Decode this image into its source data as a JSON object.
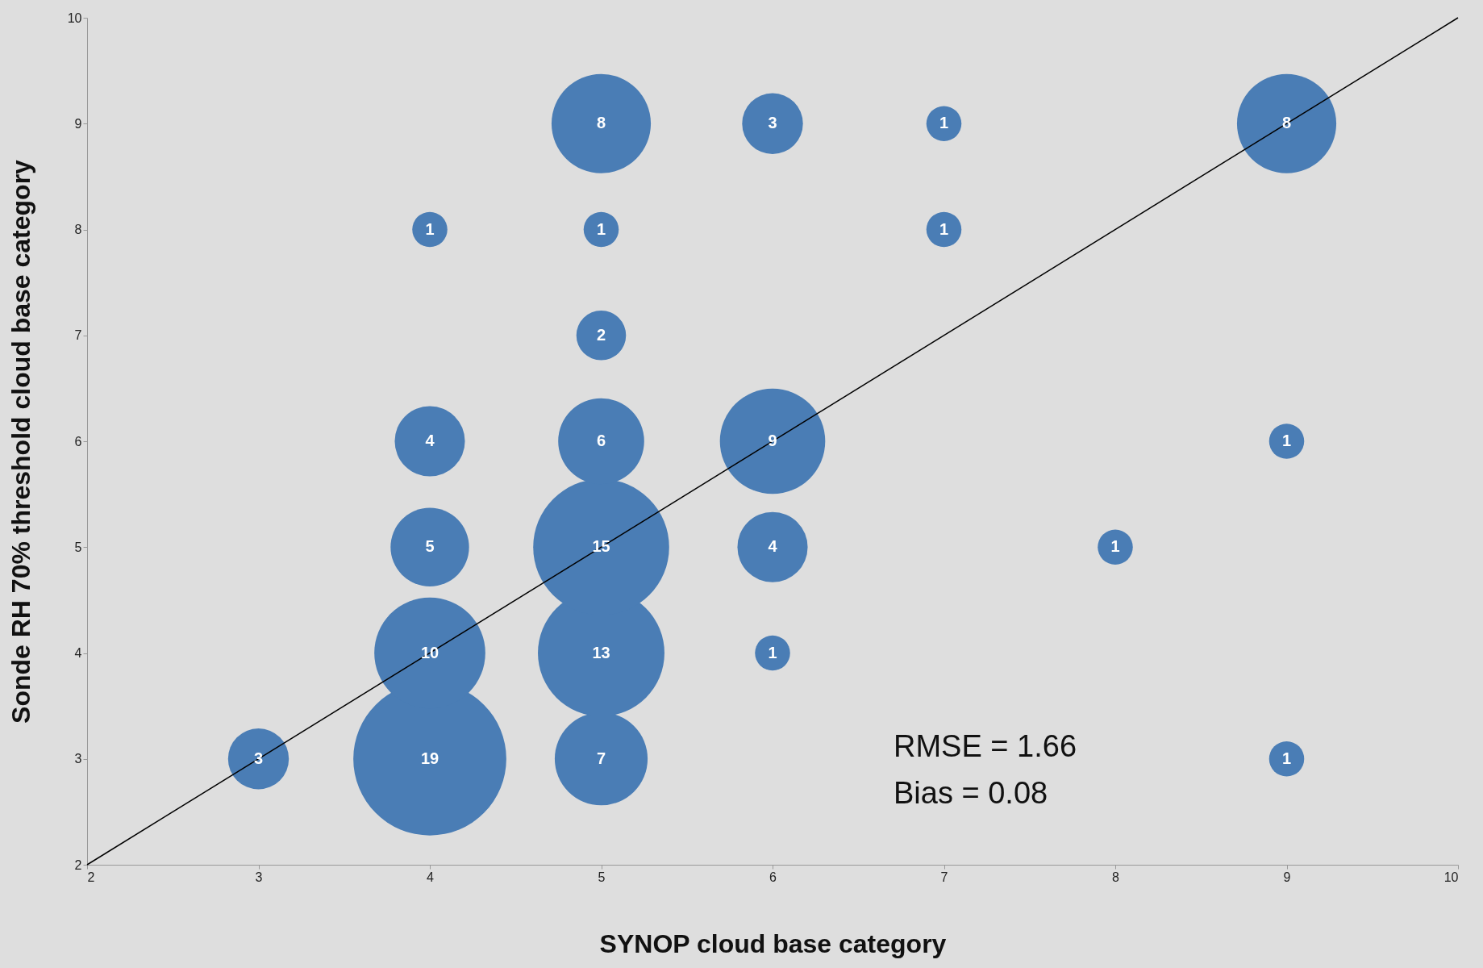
{
  "chart_data": {
    "type": "bubble",
    "xlabel": "SYNOP cloud base category",
    "ylabel": "Sonde RH 70% threshold cloud base category",
    "xlim": [
      2,
      10
    ],
    "xticks": [
      2,
      3,
      4,
      5,
      6,
      7,
      8,
      9,
      10
    ],
    "ylim": [
      2,
      10
    ],
    "yticks": [
      2,
      3,
      4,
      5,
      6,
      7,
      8,
      9,
      10
    ],
    "annotations": [
      "RMSE = 1.66",
      "Bias = 0.08"
    ],
    "series": [
      {
        "color": "#4a7db5",
        "value_labels": [
          "3",
          "19",
          "7",
          "1",
          "10",
          "13",
          "1",
          "5",
          "15",
          "4",
          "1",
          "4",
          "6",
          "9",
          "1",
          "2",
          "1",
          "1",
          "1",
          "8",
          "3",
          "1",
          "8"
        ],
        "x": [
          3,
          4,
          5,
          9,
          4,
          5,
          6,
          4,
          5,
          6,
          8,
          4,
          5,
          6,
          9,
          5,
          4,
          5,
          7,
          5,
          6,
          7,
          9
        ],
        "values": [
          3,
          3,
          3,
          3,
          4,
          4,
          4,
          5,
          5,
          5,
          5,
          6,
          6,
          6,
          6,
          7,
          8,
          8,
          8,
          9,
          9,
          9,
          9
        ],
        "sizes": [
          3,
          19,
          7,
          1,
          10,
          13,
          1,
          5,
          15,
          4,
          1,
          4,
          6,
          9,
          1,
          2,
          1,
          1,
          1,
          8,
          3,
          1,
          8
        ]
      },
      {
        "type": "line",
        "color": "#000000",
        "x": [
          2,
          10
        ],
        "values": [
          2,
          10
        ]
      }
    ]
  }
}
